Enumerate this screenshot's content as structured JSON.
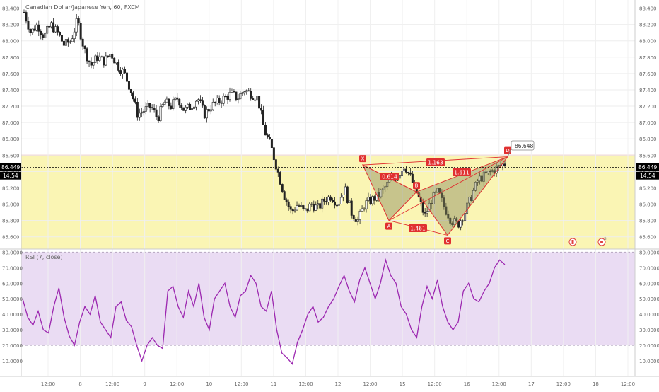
{
  "chart_data": [
    {
      "type": "candlestick",
      "title": "Canadian Dollar/Japanese Yen, 60, FXCM",
      "ylim": [
        85.45,
        88.5
      ],
      "y_ticks": [
        "88.400",
        "88.200",
        "88.000",
        "87.800",
        "87.600",
        "87.400",
        "87.200",
        "87.000",
        "86.800",
        "86.600",
        "86.400",
        "86.200",
        "86.000",
        "85.800",
        "85.600"
      ],
      "x_ticks": [
        "12:00",
        "8",
        "12:00",
        "9",
        "12:00",
        "10",
        "12:00",
        "11",
        "12:00",
        "12",
        "12:00",
        "15",
        "12:00",
        "16",
        "12:00",
        "17",
        "12:00",
        "18",
        "12:00"
      ],
      "close_path": [
        88.35,
        88.1,
        88.2,
        88.05,
        88.2,
        88.1,
        87.95,
        88.0,
        88.25,
        87.9,
        87.7,
        87.8,
        87.75,
        87.85,
        87.7,
        87.6,
        87.4,
        87.1,
        87.15,
        87.2,
        87.05,
        87.25,
        87.2,
        87.3,
        87.15,
        87.2,
        87.3,
        87.1,
        87.2,
        87.25,
        87.3,
        87.35,
        87.3,
        87.4,
        87.35,
        87.3,
        86.9,
        86.7,
        86.4,
        86.1,
        85.9,
        86.0,
        85.9,
        86.0,
        85.95,
        86.05,
        86.1,
        86.0,
        86.2,
        85.9,
        85.8,
        86.0,
        86.05,
        86.1,
        86.2,
        86.3,
        86.35,
        86.48,
        86.3,
        86.1,
        85.85,
        86.05,
        86.15,
        85.95,
        85.8,
        85.75,
        85.9,
        86.1,
        86.3,
        86.35,
        86.4,
        86.45,
        86.5
      ],
      "price_label": "86.449",
      "time_label": "14:54",
      "current_price": 86.449,
      "tooltip_value": "86.648",
      "zone": {
        "from": 85.45,
        "to": 86.6
      },
      "harmonic_pattern": {
        "points": [
          {
            "label": "X",
            "price": 86.48
          },
          {
            "label": "A",
            "price": 85.8
          },
          {
            "label": "B",
            "price": 86.15
          },
          {
            "label": "C",
            "price": 85.62
          },
          {
            "label": "D",
            "price": 86.58
          }
        ],
        "ratios": [
          "0.614",
          "1.461",
          "1.163",
          "1.611"
        ]
      },
      "event_icons": [
        "canada-flag-icon",
        "dollar-event-icon"
      ]
    },
    {
      "type": "line",
      "title": "RSI (7, close)",
      "ylim": [
        0,
        82
      ],
      "y_ticks": [
        "80.0000",
        "70.0000",
        "60.0000",
        "50.0000",
        "40.0000",
        "30.0000",
        "20.0000",
        "10.0000"
      ],
      "overbought": 80,
      "oversold": 20,
      "series": [
        {
          "values": [
            50,
            38,
            33,
            42,
            30,
            28,
            45,
            57,
            38,
            26,
            20,
            35,
            45,
            40,
            52,
            35,
            30,
            25,
            45,
            48,
            36,
            32,
            20,
            10,
            20,
            25,
            20,
            18,
            55,
            58,
            45,
            38,
            55,
            45,
            60,
            38,
            30,
            50,
            55,
            60,
            45,
            38,
            52,
            55,
            65,
            60,
            45,
            42,
            55,
            30,
            15,
            12,
            8,
            22,
            30,
            40,
            45,
            35,
            38,
            45,
            50,
            58,
            65,
            55,
            48,
            62,
            70,
            60,
            50,
            60,
            75,
            65,
            60,
            45,
            40,
            30,
            25,
            45,
            58,
            50,
            62,
            45,
            35,
            30,
            35,
            55,
            60,
            50,
            48,
            55,
            60,
            70,
            75,
            72
          ]
        }
      ],
      "line_color": "#9c27b0"
    }
  ]
}
